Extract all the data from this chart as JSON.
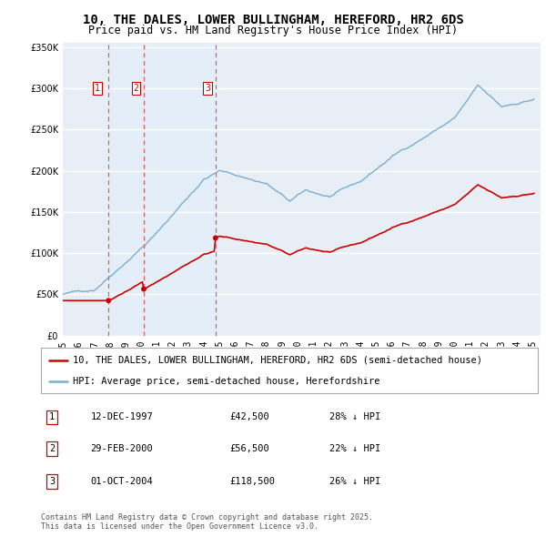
{
  "title": "10, THE DALES, LOWER BULLINGHAM, HEREFORD, HR2 6DS",
  "subtitle": "Price paid vs. HM Land Registry's House Price Index (HPI)",
  "legend_label_red": "10, THE DALES, LOWER BULLINGHAM, HEREFORD, HR2 6DS (semi-detached house)",
  "legend_label_blue": "HPI: Average price, semi-detached house, Herefordshire",
  "footnote": "Contains HM Land Registry data © Crown copyright and database right 2025.\nThis data is licensed under the Open Government Licence v3.0.",
  "transactions": [
    {
      "num": 1,
      "date": "12-DEC-1997",
      "price": "£42,500",
      "hpi": "28% ↓ HPI",
      "year": 1997.92
    },
    {
      "num": 2,
      "date": "29-FEB-2000",
      "price": "£56,500",
      "hpi": "22% ↓ HPI",
      "year": 2000.17
    },
    {
      "num": 3,
      "date": "01-OCT-2004",
      "price": "£118,500",
      "hpi": "26% ↓ HPI",
      "year": 2004.75
    }
  ],
  "transaction_prices": [
    42500,
    56500,
    118500
  ],
  "vline_color": "#e06060",
  "vline_shade_color": "#ddeeff",
  "red_color": "#cc0000",
  "blue_color": "#7aadd4",
  "bg_color": "#ffffff",
  "plot_bg_color": "#e8eef5",
  "grid_color": "#ffffff",
  "title_fontsize": 10,
  "subtitle_fontsize": 8.5,
  "tick_fontsize": 7,
  "legend_fontsize": 7.5,
  "table_fontsize": 7.5,
  "footnote_fontsize": 6
}
